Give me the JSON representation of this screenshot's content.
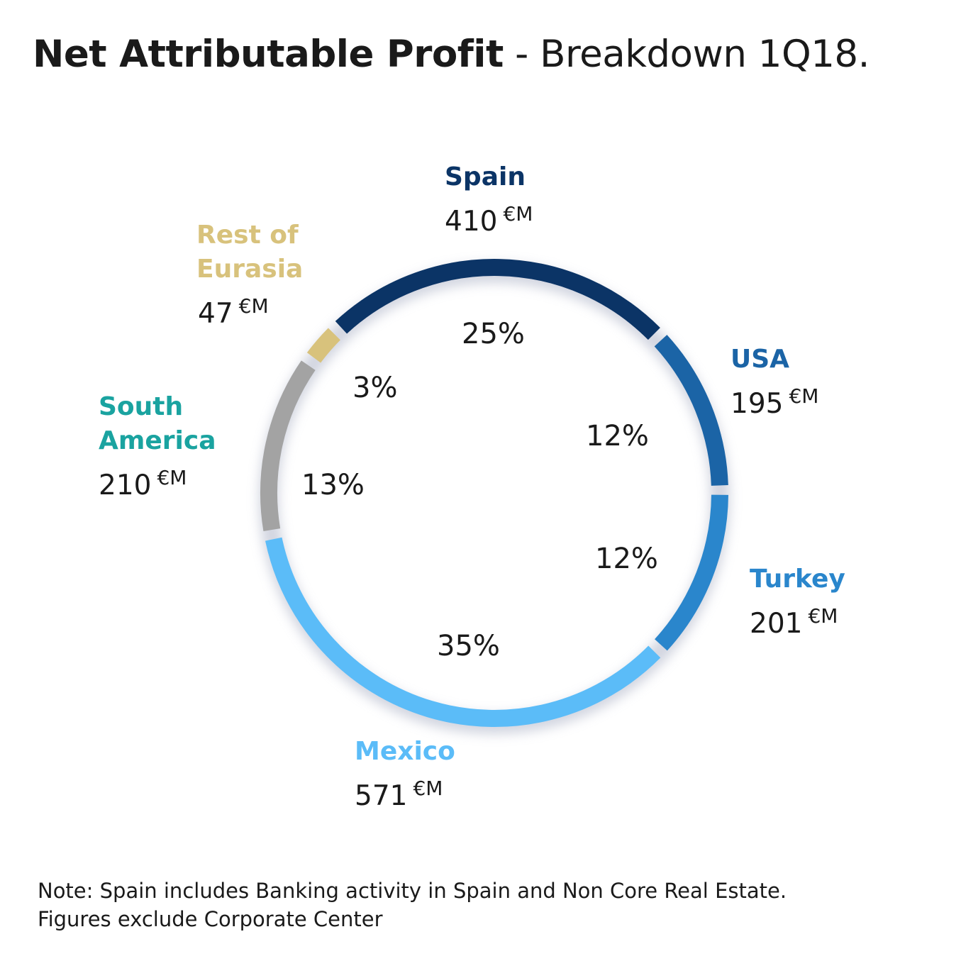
{
  "title": {
    "bold": "Net Attributable Profit",
    "light": "- Breakdown 1Q18."
  },
  "chart_data": {
    "type": "pie",
    "style": "ring",
    "title": "Net Attributable Profit - Breakdown 1Q18.",
    "unit": "€M",
    "segments": [
      {
        "key": "spain",
        "label": "Spain",
        "value": "410",
        "percent": "25%",
        "color": "#0b3466"
      },
      {
        "key": "usa",
        "label": "USA",
        "value": "195",
        "percent": "12%",
        "color": "#1b64a6"
      },
      {
        "key": "turkey",
        "label": "Turkey",
        "value": "201",
        "percent": "12%",
        "color": "#2a86cc"
      },
      {
        "key": "mexico",
        "label": "Mexico",
        "value": "571",
        "percent": "35%",
        "color": "#5bbcf8"
      },
      {
        "key": "south_am",
        "label": "South America",
        "value": "210",
        "percent": "13%",
        "color": "#a3a3a3",
        "label_color": "#1aa3a0"
      },
      {
        "key": "eurasia",
        "label": "Rest of Eurasia",
        "value": "47",
        "percent": "3%",
        "color": "#d8c27c"
      }
    ]
  },
  "note": {
    "line1": "Note: Spain includes Banking activity in Spain and Non Core Real Estate.",
    "line2": "Figures exclude Corporate Center"
  }
}
